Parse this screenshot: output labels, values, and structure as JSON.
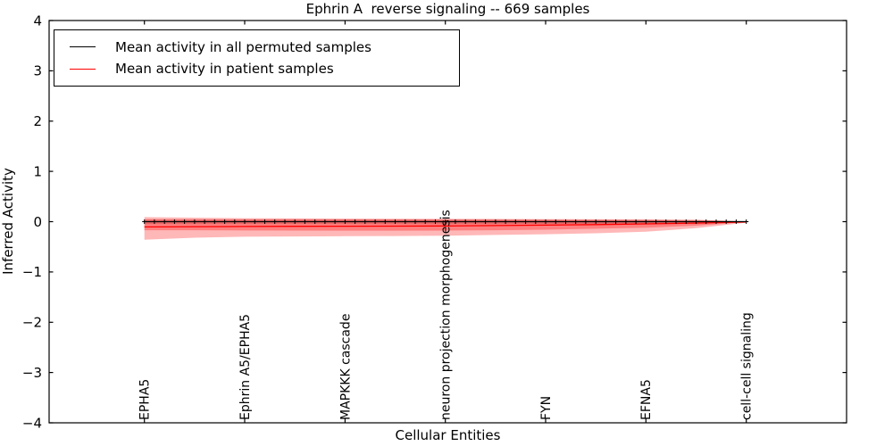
{
  "chart_data": {
    "type": "line",
    "title": "Ephrin A  reverse signaling -- 669 samples",
    "xlabel": "Cellular Entities",
    "ylabel": "Inferred Activity",
    "ylim": [
      -4,
      4
    ],
    "xlim": [
      -0.95,
      7.0
    ],
    "grid": false,
    "legend": {
      "position": "upper left"
    },
    "y_ticks": {
      "values": [
        4,
        3,
        2,
        1,
        0,
        -1,
        -2,
        -3,
        -4
      ],
      "labels": [
        "4",
        "3",
        "2",
        "1",
        "0",
        "−1",
        "−2",
        "−3",
        "−4"
      ]
    },
    "categories": [
      "EPHA5",
      "Ephrin A5/EPHA5",
      "MAPKKK cascade",
      "neuron projection morphogenesis",
      "FYN",
      "EFNA5",
      "cell-cell signaling"
    ],
    "category_positions": [
      0,
      1,
      2,
      3,
      4,
      5,
      6
    ],
    "x": [
      0,
      0.5,
      1,
      1.5,
      2,
      2.5,
      3,
      3.5,
      4,
      4.5,
      5,
      5.5,
      6
    ],
    "series": [
      {
        "name": "Mean activity in all permuted samples",
        "color": "#000000",
        "marker": "+",
        "marker_step": 0.1,
        "y": [
          0,
          0,
          0,
          0,
          0,
          0,
          0,
          0,
          0,
          0,
          0,
          0,
          0
        ]
      },
      {
        "name": "Mean activity in patient samples",
        "color": "#ff0000",
        "marker": null,
        "y": [
          -0.105,
          -0.1,
          -0.095,
          -0.092,
          -0.09,
          -0.088,
          -0.085,
          -0.078,
          -0.07,
          -0.058,
          -0.045,
          -0.028,
          -0.005
        ]
      }
    ],
    "bands": [
      {
        "name": "permuted-samples-range",
        "color": "rgba(120,120,120,0.35)",
        "upper": [
          0.04,
          0.04,
          0.04,
          0.04,
          0.04,
          0.04,
          0.04,
          0.04,
          0.038,
          0.036,
          0.034,
          0.03,
          0.012
        ],
        "lower": [
          -0.05,
          -0.05,
          -0.05,
          -0.05,
          -0.05,
          -0.05,
          -0.05,
          -0.05,
          -0.048,
          -0.045,
          -0.04,
          -0.034,
          -0.015
        ]
      },
      {
        "name": "patient-samples-range-outer",
        "color": "rgba(255,0,0,0.28)",
        "upper": [
          0.09,
          0.08,
          0.07,
          0.065,
          0.062,
          0.06,
          0.058,
          0.055,
          0.052,
          0.05,
          0.048,
          0.04,
          0.002
        ],
        "lower": [
          -0.36,
          -0.32,
          -0.3,
          -0.295,
          -0.29,
          -0.285,
          -0.28,
          -0.265,
          -0.25,
          -0.23,
          -0.2,
          -0.13,
          -0.02
        ]
      },
      {
        "name": "patient-samples-range-inner",
        "color": "rgba(255,0,0,0.3)",
        "upper": [
          0.05,
          0.05,
          0.05,
          0.048,
          0.046,
          0.045,
          0.043,
          0.04,
          0.038,
          0.035,
          0.03,
          0.02,
          0.001
        ],
        "lower": [
          -0.17,
          -0.17,
          -0.175,
          -0.178,
          -0.18,
          -0.18,
          -0.178,
          -0.17,
          -0.16,
          -0.14,
          -0.12,
          -0.08,
          -0.01
        ]
      }
    ]
  }
}
